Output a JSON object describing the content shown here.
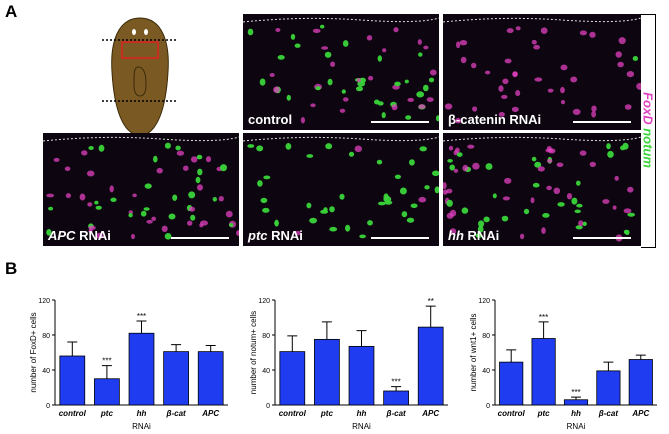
{
  "panel_a": {
    "letter": "A",
    "legend": {
      "foxd": "FoxD",
      "notum": "notum",
      "foxd_color": "#e040c0",
      "notum_color": "#3ad43a"
    },
    "images": [
      {
        "id": "control",
        "label_italic": "",
        "label_plain": "control"
      },
      {
        "id": "bcat",
        "label_italic": "",
        "label_plain": "β-catenin RNAi"
      },
      {
        "id": "apc",
        "label_italic": "APC",
        "label_plain": " RNAi"
      },
      {
        "id": "ptc",
        "label_italic": "ptc",
        "label_plain": " RNAi"
      },
      {
        "id": "hh",
        "label_italic": "hh",
        "label_plain": " RNAi"
      }
    ]
  },
  "panel_b": {
    "letter": "B"
  },
  "chart_data": [
    {
      "type": "bar",
      "categories": [
        "control",
        "ptc",
        "hh",
        "β-cat",
        "APC"
      ],
      "values": [
        56,
        30,
        82,
        61,
        61
      ],
      "errors": [
        16,
        15,
        14,
        8,
        7
      ],
      "significance": [
        "",
        "***",
        "***",
        "",
        ""
      ],
      "ylabel": "number of FoxD+ cells",
      "xlabel": "RNAi",
      "ylim": [
        0,
        120
      ],
      "yticks": [
        0,
        40,
        80,
        120
      ],
      "bar_color": "#1f3cf0"
    },
    {
      "type": "bar",
      "categories": [
        "control",
        "ptc",
        "hh",
        "β-cat",
        "APC"
      ],
      "values": [
        61,
        75,
        67,
        16,
        89
      ],
      "errors": [
        18,
        20,
        18,
        5,
        24
      ],
      "significance": [
        "",
        "",
        "",
        "***",
        "**"
      ],
      "ylabel": "number of notum+ cells",
      "xlabel": "RNAi",
      "ylim": [
        0,
        120
      ],
      "yticks": [
        0,
        40,
        80,
        120
      ],
      "bar_color": "#1f3cf0"
    },
    {
      "type": "bar",
      "categories": [
        "control",
        "ptc",
        "hh",
        "β-cat",
        "APC"
      ],
      "values": [
        49,
        76,
        6,
        39,
        52
      ],
      "errors": [
        14,
        19,
        3,
        10,
        5
      ],
      "significance": [
        "",
        "***",
        "***",
        "",
        ""
      ],
      "ylabel": "number of wnt1+ cells",
      "xlabel": "RNAi",
      "ylim": [
        0,
        120
      ],
      "yticks": [
        0,
        40,
        80,
        120
      ],
      "bar_color": "#1f3cf0"
    }
  ]
}
